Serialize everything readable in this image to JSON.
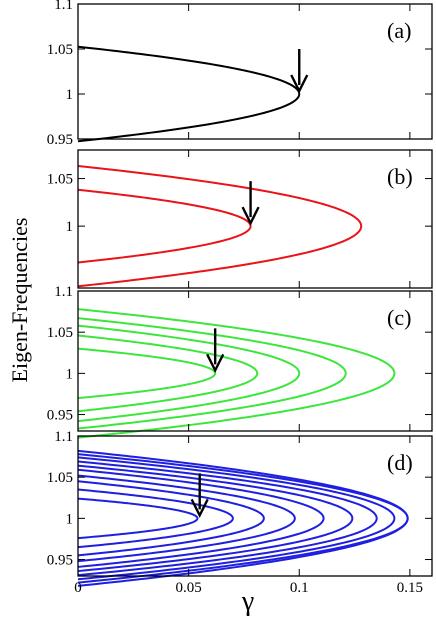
{
  "chart_data": {
    "type": "line",
    "xlabel": "γ",
    "ylabel": "Eigen-Frequencies",
    "xlim": [
      0,
      0.16
    ],
    "xticks": [
      "0",
      "0.05",
      "0.1",
      "0.15"
    ],
    "xtick_values": [
      0,
      0.05,
      0.1,
      0.15
    ],
    "grid": false,
    "panels": [
      {
        "label": "(a)",
        "color": "#000000",
        "ylim": [
          0.95,
          1.1
        ],
        "yticks": [
          "0.95",
          "1",
          "1.05",
          "1.1"
        ],
        "ytick_values": [
          0.95,
          1.0,
          1.05,
          1.1
        ],
        "arrow_gamma": 0.1,
        "branches": [
          {
            "half_width": 0.0525,
            "gamma_max": 0.1
          }
        ]
      },
      {
        "label": "(b)",
        "color": "#e8141a",
        "ylim": [
          0.935,
          1.08
        ],
        "yticks": [
          "1",
          "1.05"
        ],
        "ytick_values": [
          1.0,
          1.05
        ],
        "arrow_gamma": 0.078,
        "branches": [
          {
            "half_width": 0.0382,
            "gamma_max": 0.078
          },
          {
            "half_width": 0.0632,
            "gamma_max": 0.128
          }
        ]
      },
      {
        "label": "(c)",
        "color": "#3ce63c",
        "ylim": [
          0.93,
          1.1
        ],
        "yticks": [
          "0.95",
          "1",
          "1.05",
          "1.1"
        ],
        "ytick_values": [
          0.95,
          1.0,
          1.05,
          1.1
        ],
        "arrow_gamma": 0.062,
        "branches": [
          {
            "half_width": 0.03,
            "gamma_max": 0.062
          },
          {
            "half_width": 0.046,
            "gamma_max": 0.081
          },
          {
            "half_width": 0.058,
            "gamma_max": 0.1
          },
          {
            "half_width": 0.067,
            "gamma_max": 0.121
          },
          {
            "half_width": 0.078,
            "gamma_max": 0.143
          }
        ]
      },
      {
        "label": "(d)",
        "color": "#1f1fe0",
        "ylim": [
          0.93,
          1.1
        ],
        "yticks": [
          "0.95",
          "1",
          "1.05",
          "1.1"
        ],
        "ytick_values": [
          0.95,
          1.0,
          1.05,
          1.1
        ],
        "arrow_gamma": 0.055,
        "branches": [
          {
            "half_width": 0.024,
            "gamma_max": 0.054
          },
          {
            "half_width": 0.035,
            "gamma_max": 0.07
          },
          {
            "half_width": 0.045,
            "gamma_max": 0.084
          },
          {
            "half_width": 0.052,
            "gamma_max": 0.098
          },
          {
            "half_width": 0.059,
            "gamma_max": 0.111
          },
          {
            "half_width": 0.064,
            "gamma_max": 0.124
          },
          {
            "half_width": 0.069,
            "gamma_max": 0.135
          },
          {
            "half_width": 0.074,
            "gamma_max": 0.143
          },
          {
            "half_width": 0.078,
            "gamma_max": 0.149
          },
          {
            "half_width": 0.082,
            "gamma_max": 0.149
          }
        ]
      }
    ]
  }
}
